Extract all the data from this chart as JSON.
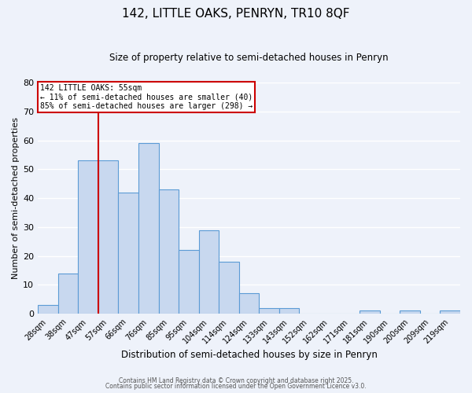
{
  "title": "142, LITTLE OAKS, PENRYN, TR10 8QF",
  "subtitle": "Size of property relative to semi-detached houses in Penryn",
  "xlabel": "Distribution of semi-detached houses by size in Penryn",
  "ylabel": "Number of semi-detached properties",
  "bar_color": "#c8d8ef",
  "bar_edge_color": "#5b9bd5",
  "fig_background": "#eef2fa",
  "ax_background": "#eef2fa",
  "grid_color": "#ffffff",
  "bins": [
    "28sqm",
    "38sqm",
    "47sqm",
    "57sqm",
    "66sqm",
    "76sqm",
    "85sqm",
    "95sqm",
    "104sqm",
    "114sqm",
    "124sqm",
    "133sqm",
    "143sqm",
    "152sqm",
    "162sqm",
    "171sqm",
    "181sqm",
    "190sqm",
    "200sqm",
    "209sqm",
    "219sqm"
  ],
  "values": [
    3,
    14,
    53,
    53,
    42,
    59,
    43,
    22,
    29,
    18,
    7,
    2,
    2,
    0,
    0,
    0,
    1,
    0,
    1,
    0,
    1
  ],
  "ylim": [
    0,
    80
  ],
  "yticks": [
    0,
    10,
    20,
    30,
    40,
    50,
    60,
    70,
    80
  ],
  "line_color": "#cc0000",
  "property_label": "142 LITTLE OAKS: 55sqm",
  "pct_smaller": 11,
  "count_smaller": 40,
  "pct_larger": 85,
  "count_larger": 298,
  "annotation_box_color": "#ffffff",
  "annotation_box_edge": "#cc0000",
  "footer1": "Contains HM Land Registry data © Crown copyright and database right 2025.",
  "footer2": "Contains public sector information licensed under the Open Government Licence v3.0."
}
